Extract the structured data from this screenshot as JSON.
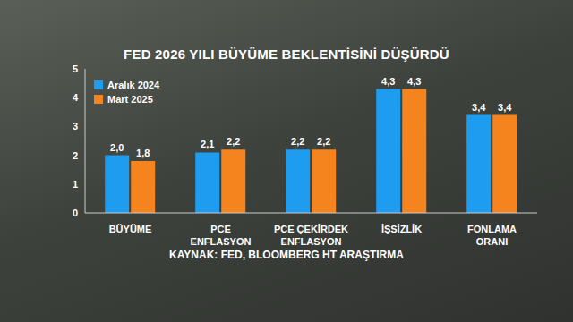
{
  "chart_data": {
    "type": "bar",
    "title": "FED 2026 YILI BÜYÜME BEKLENTİSİNİ DÜŞÜRDÜ",
    "annotations": [
      "KAYNAK: FED, BLOOMBERG HT ARAŞTIRMA"
    ],
    "categories": [
      "BÜYÜME",
      "PCE ENFLASYON",
      "PCE ÇEKİRDEK ENFLASYON",
      "İŞSİZLİK",
      "FONLAMA ORANI"
    ],
    "series": [
      {
        "name": "Aralık 2024",
        "color": "#1e9cf0",
        "values": [
          2.0,
          2.1,
          2.2,
          4.3,
          3.4
        ],
        "value_labels": [
          "2,0",
          "2,1",
          "2,2",
          "4,3",
          "3,4"
        ]
      },
      {
        "name": "Mart 2025",
        "color": "#f5841f",
        "values": [
          1.8,
          2.2,
          2.2,
          4.3,
          3.4
        ],
        "value_labels": [
          "1,8",
          "2,2",
          "2,2",
          "4,3",
          "3,4"
        ]
      }
    ],
    "ylim": [
      0,
      5
    ],
    "yticks": [
      0,
      1,
      2,
      3,
      4,
      5
    ],
    "grid": false,
    "legend": "upper left",
    "data_labels": true
  }
}
